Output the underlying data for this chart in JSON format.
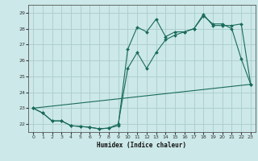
{
  "xlabel": "Humidex (Indice chaleur)",
  "bg_color": "#cce8e8",
  "grid_color": "#aacccc",
  "line_color": "#1a6b5a",
  "xlim": [
    -0.5,
    23.5
  ],
  "ylim": [
    21.5,
    29.5
  ],
  "x_ticks": [
    0,
    1,
    2,
    3,
    4,
    5,
    6,
    7,
    8,
    9,
    10,
    11,
    12,
    13,
    14,
    15,
    16,
    17,
    18,
    19,
    20,
    21,
    22,
    23
  ],
  "y_ticks": [
    22,
    23,
    24,
    25,
    26,
    27,
    28,
    29
  ],
  "line1_x": [
    0,
    1,
    2,
    3,
    4,
    5,
    6,
    7,
    8,
    9,
    10,
    11,
    12,
    13,
    14,
    15,
    16,
    17,
    18,
    19,
    20,
    21,
    22,
    23
  ],
  "line1_y": [
    23.0,
    22.7,
    22.2,
    22.2,
    21.9,
    21.85,
    21.8,
    21.7,
    21.75,
    21.9,
    26.7,
    28.1,
    27.8,
    28.6,
    27.5,
    27.8,
    27.8,
    28.0,
    28.8,
    28.3,
    28.3,
    28.0,
    26.1,
    24.5
  ],
  "line2_x": [
    0,
    1,
    2,
    3,
    4,
    5,
    6,
    7,
    8,
    9,
    10,
    11,
    12,
    13,
    14,
    15,
    16,
    17,
    18,
    19,
    20,
    21,
    22,
    23
  ],
  "line2_y": [
    23.0,
    22.7,
    22.2,
    22.2,
    21.9,
    21.85,
    21.8,
    21.7,
    21.75,
    22.0,
    25.5,
    26.5,
    25.5,
    26.5,
    27.3,
    27.6,
    27.8,
    28.0,
    28.9,
    28.2,
    28.2,
    28.2,
    28.3,
    24.5
  ],
  "line3_x": [
    0,
    23
  ],
  "line3_y": [
    23.0,
    24.5
  ]
}
